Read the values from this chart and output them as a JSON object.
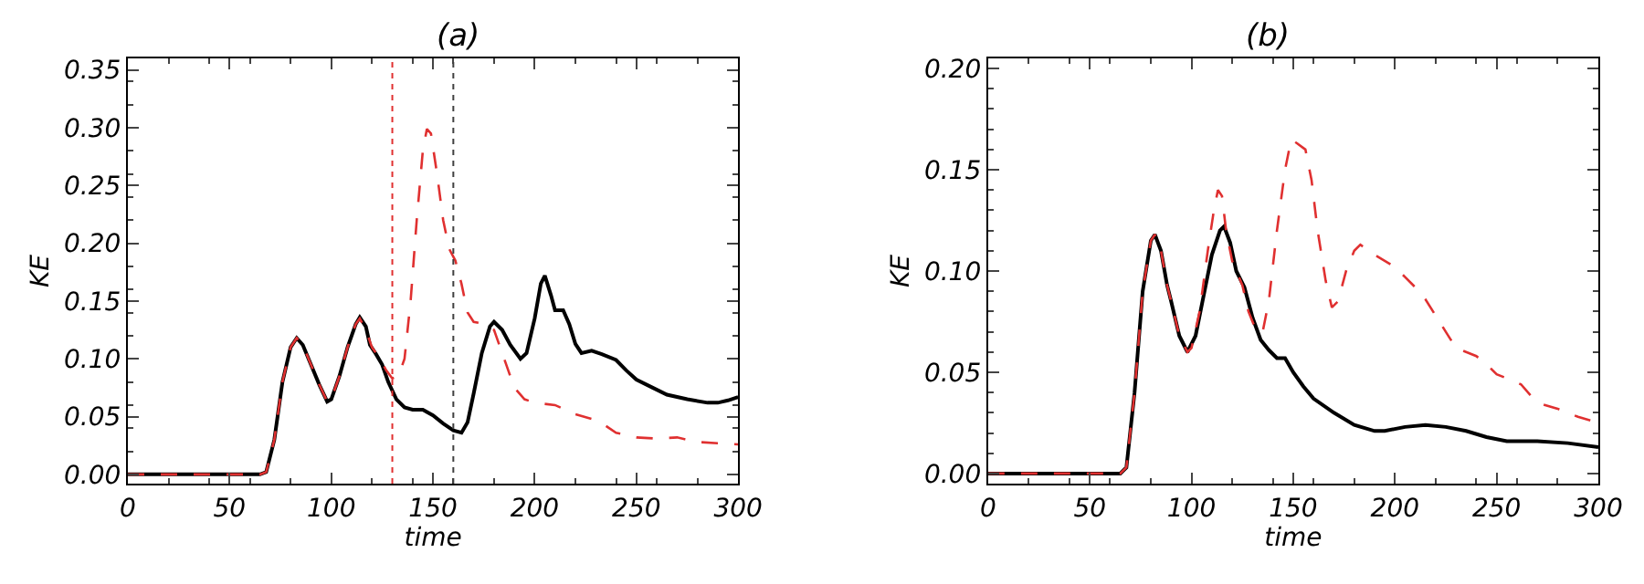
{
  "chart_data": [
    {
      "type": "line",
      "title": "(a)",
      "xlabel": "time",
      "ylabel": "KE",
      "xlim": [
        0,
        300
      ],
      "ylim": [
        -0.008,
        0.36
      ],
      "xticks": [
        0,
        50,
        100,
        150,
        200,
        250,
        300
      ],
      "yticks": [
        {
          "value": 0,
          "label": "0.00"
        },
        0.05,
        {
          "value": 0.1,
          "label": "0.10"
        },
        0.15,
        {
          "value": 0.2,
          "label": "0.20"
        },
        0.25,
        {
          "value": 0.3,
          "label": "0.30"
        },
        0.35
      ],
      "ref_lines": [
        {
          "axis": "x",
          "value": 130,
          "color": "#e03030",
          "line_style": "dotted"
        },
        {
          "axis": "x",
          "value": 160,
          "color": "#404040",
          "line_style": "dotted"
        }
      ],
      "series": [
        {
          "color": "#000000",
          "line_style": "solid",
          "x": [
            0,
            65,
            68,
            72,
            76,
            80,
            83,
            86,
            90,
            94,
            98,
            100,
            104,
            108,
            112,
            114,
            117,
            119,
            122,
            125,
            128,
            132,
            136,
            140,
            145,
            150,
            155,
            160,
            164,
            167,
            170,
            174,
            178,
            180,
            184,
            188,
            193,
            196,
            200,
            203,
            205,
            208,
            210,
            214,
            217,
            220,
            223,
            228,
            233,
            240,
            245,
            250,
            258,
            265,
            275,
            285,
            290,
            295,
            300
          ],
          "values": [
            0,
            0,
            0.002,
            0.03,
            0.08,
            0.11,
            0.118,
            0.112,
            0.095,
            0.078,
            0.063,
            0.065,
            0.085,
            0.11,
            0.13,
            0.136,
            0.128,
            0.112,
            0.104,
            0.095,
            0.08,
            0.065,
            0.058,
            0.056,
            0.056,
            0.051,
            0.044,
            0.038,
            0.036,
            0.045,
            0.07,
            0.105,
            0.128,
            0.132,
            0.125,
            0.112,
            0.1,
            0.105,
            0.135,
            0.165,
            0.172,
            0.155,
            0.142,
            0.142,
            0.13,
            0.113,
            0.105,
            0.107,
            0.104,
            0.099,
            0.09,
            0.082,
            0.075,
            0.069,
            0.065,
            0.062,
            0.062,
            0.064,
            0.067
          ]
        },
        {
          "color": "#e03030",
          "line_style": "dashed",
          "x": [
            0,
            65,
            68,
            72,
            76,
            80,
            83,
            86,
            90,
            94,
            98,
            100,
            104,
            108,
            112,
            114,
            117,
            120,
            124,
            127,
            130,
            133,
            136,
            139,
            142,
            145,
            147,
            149,
            152,
            155,
            158,
            161,
            164,
            167,
            170,
            176,
            180,
            185,
            190,
            195,
            200,
            210,
            220,
            230,
            235,
            240,
            250,
            260,
            270,
            280,
            290,
            300
          ],
          "values": [
            0,
            0,
            0.002,
            0.03,
            0.08,
            0.11,
            0.118,
            0.112,
            0.095,
            0.078,
            0.063,
            0.065,
            0.085,
            0.11,
            0.13,
            0.135,
            0.125,
            0.11,
            0.1,
            0.09,
            0.083,
            0.085,
            0.1,
            0.15,
            0.22,
            0.28,
            0.299,
            0.295,
            0.26,
            0.22,
            0.195,
            0.185,
            0.165,
            0.14,
            0.132,
            0.13,
            0.125,
            0.1,
            0.075,
            0.065,
            0.062,
            0.06,
            0.052,
            0.047,
            0.042,
            0.036,
            0.032,
            0.031,
            0.032,
            0.028,
            0.027,
            0.026
          ]
        }
      ]
    },
    {
      "type": "line",
      "title": "(b)",
      "xlabel": "time",
      "ylabel": "KE",
      "xlim": [
        0,
        300
      ],
      "ylim": [
        -0.005,
        0.205
      ],
      "xticks": [
        0,
        50,
        100,
        150,
        200,
        250,
        300
      ],
      "yticks": [
        {
          "value": 0,
          "label": "0.00"
        },
        0.05,
        {
          "value": 0.1,
          "label": "0.10"
        },
        0.15,
        {
          "value": 0.2,
          "label": "0.20"
        }
      ],
      "series": [
        {
          "color": "#000000",
          "line_style": "solid",
          "x": [
            0,
            65,
            68,
            72,
            76,
            80,
            82,
            85,
            88,
            90,
            94,
            98,
            102,
            106,
            110,
            114,
            116,
            119,
            122,
            126,
            130,
            134,
            138,
            142,
            146,
            150,
            155,
            160,
            170,
            180,
            190,
            195,
            205,
            215,
            225,
            235,
            245,
            255,
            270,
            285,
            300
          ],
          "values": [
            0,
            0,
            0.003,
            0.04,
            0.09,
            0.115,
            0.118,
            0.11,
            0.093,
            0.085,
            0.068,
            0.06,
            0.068,
            0.088,
            0.108,
            0.12,
            0.122,
            0.114,
            0.1,
            0.092,
            0.077,
            0.066,
            0.061,
            0.057,
            0.057,
            0.05,
            0.043,
            0.037,
            0.03,
            0.024,
            0.021,
            0.021,
            0.023,
            0.024,
            0.023,
            0.021,
            0.018,
            0.016,
            0.016,
            0.015,
            0.013
          ]
        },
        {
          "color": "#e03030",
          "line_style": "dashed",
          "x": [
            0,
            65,
            68,
            72,
            76,
            80,
            82,
            85,
            88,
            90,
            94,
            98,
            100,
            104,
            108,
            111,
            113,
            115,
            117,
            120,
            125,
            128,
            132,
            135,
            138,
            142,
            146,
            149,
            152,
            156,
            159,
            162,
            166,
            169,
            172,
            176,
            180,
            183,
            190,
            200,
            205,
            210,
            215,
            220,
            225,
            230,
            235,
            240,
            245,
            250,
            255,
            262,
            268,
            273,
            280,
            290,
            300
          ],
          "values": [
            0,
            0,
            0.003,
            0.04,
            0.09,
            0.115,
            0.118,
            0.11,
            0.093,
            0.085,
            0.068,
            0.06,
            0.062,
            0.08,
            0.11,
            0.13,
            0.14,
            0.137,
            0.12,
            0.105,
            0.093,
            0.08,
            0.07,
            0.07,
            0.085,
            0.12,
            0.15,
            0.165,
            0.163,
            0.16,
            0.145,
            0.12,
            0.095,
            0.082,
            0.085,
            0.1,
            0.11,
            0.113,
            0.108,
            0.102,
            0.097,
            0.092,
            0.086,
            0.078,
            0.07,
            0.062,
            0.06,
            0.058,
            0.054,
            0.049,
            0.047,
            0.044,
            0.037,
            0.034,
            0.032,
            0.028,
            0.025
          ]
        }
      ]
    }
  ]
}
